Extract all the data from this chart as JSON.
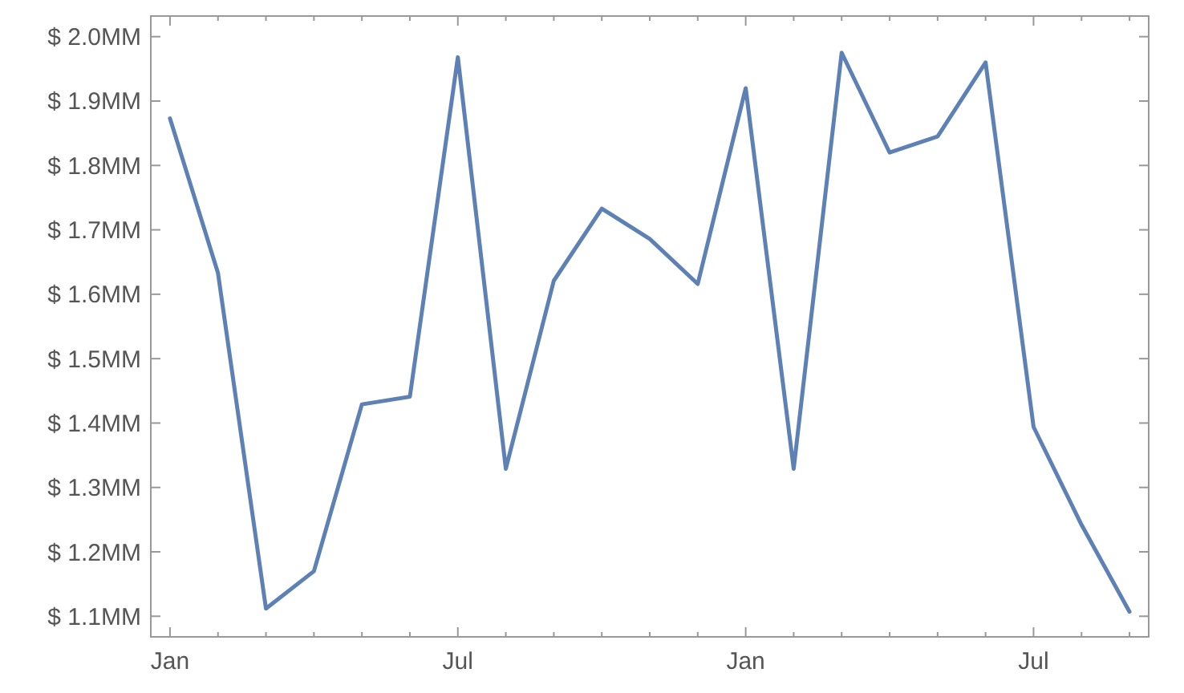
{
  "chart_data": {
    "type": "line",
    "categories": [
      "Jan",
      null,
      null,
      null,
      null,
      null,
      "Jul",
      null,
      null,
      null,
      null,
      null,
      "Jan",
      null,
      null,
      null,
      null,
      null,
      "Jul",
      null,
      null
    ],
    "series": [
      {
        "color": "#5e81b5",
        "values": [
          1.873,
          1.633,
          1.112,
          1.17,
          1.429,
          1.441,
          1.968,
          1.329,
          1.621,
          1.733,
          1.686,
          1.616,
          1.92,
          1.329,
          1.975,
          1.82,
          1.845,
          1.96,
          1.394,
          1.242,
          1.107
        ]
      }
    ],
    "ylim": [
      1.068,
      2.032
    ],
    "yticks": [
      {
        "value": 1.1,
        "label": "$ 1.1MM"
      },
      {
        "value": 1.2,
        "label": "$ 1.2MM"
      },
      {
        "value": 1.3,
        "label": "$ 1.3MM"
      },
      {
        "value": 1.4,
        "label": "$ 1.4MM"
      },
      {
        "value": 1.5,
        "label": "$ 1.5MM"
      },
      {
        "value": 1.6,
        "label": "$ 1.6MM"
      },
      {
        "value": 1.7,
        "label": "$ 1.7MM"
      },
      {
        "value": 1.8,
        "label": "$ 1.8MM"
      },
      {
        "value": 1.9,
        "label": "$ 1.9MM"
      },
      {
        "value": 2.0,
        "label": "$ 2.0MM"
      }
    ],
    "grid": false,
    "marker": "none",
    "line_style": "solid"
  }
}
